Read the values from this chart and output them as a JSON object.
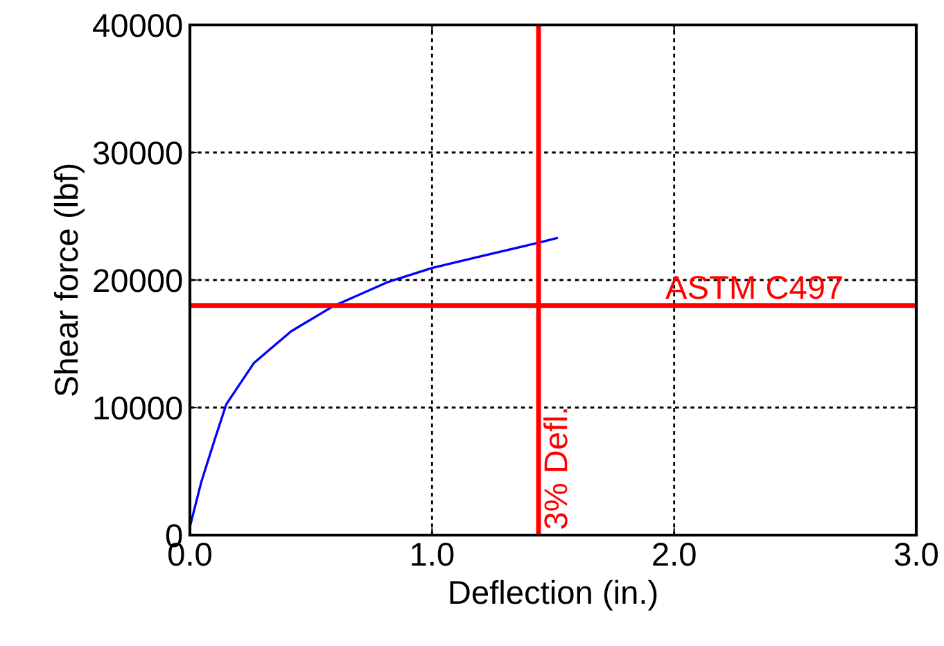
{
  "chart_data": {
    "type": "line",
    "xlabel": "Deflection (in.)",
    "ylabel": "Shear force (lbf)",
    "xlim": [
      0,
      3
    ],
    "xticks": [
      {
        "value": 0,
        "label": "0.0"
      },
      {
        "value": 1,
        "label": "1.0"
      },
      {
        "value": 2,
        "label": "2.0"
      },
      {
        "value": 3,
        "label": "3.0"
      }
    ],
    "ylim": [
      0,
      40000
    ],
    "yticks": [
      0,
      10000,
      20000,
      30000,
      40000
    ],
    "grid": true,
    "marker": "none",
    "line_style": "solid",
    "series": [
      {
        "color": "#0000ff",
        "x": [
          0,
          0.046,
          0.103,
          0.15,
          0.265,
          0.418,
          0.59,
          0.82,
          1.0,
          1.2,
          1.44,
          1.515
        ],
        "values": [
          650,
          4100,
          7530,
          10250,
          13510,
          15980,
          17930,
          19860,
          20940,
          21850,
          22930,
          23290
        ]
      }
    ],
    "ref_lines": [
      {
        "axis": "x",
        "value": 1.44,
        "label": "3% Defl.",
        "color": "#ff0000",
        "line_style": "solid"
      },
      {
        "axis": "y",
        "value": 18000,
        "label": "ASTM C497",
        "color": "#ff0000",
        "line_style": "solid"
      }
    ]
  }
}
